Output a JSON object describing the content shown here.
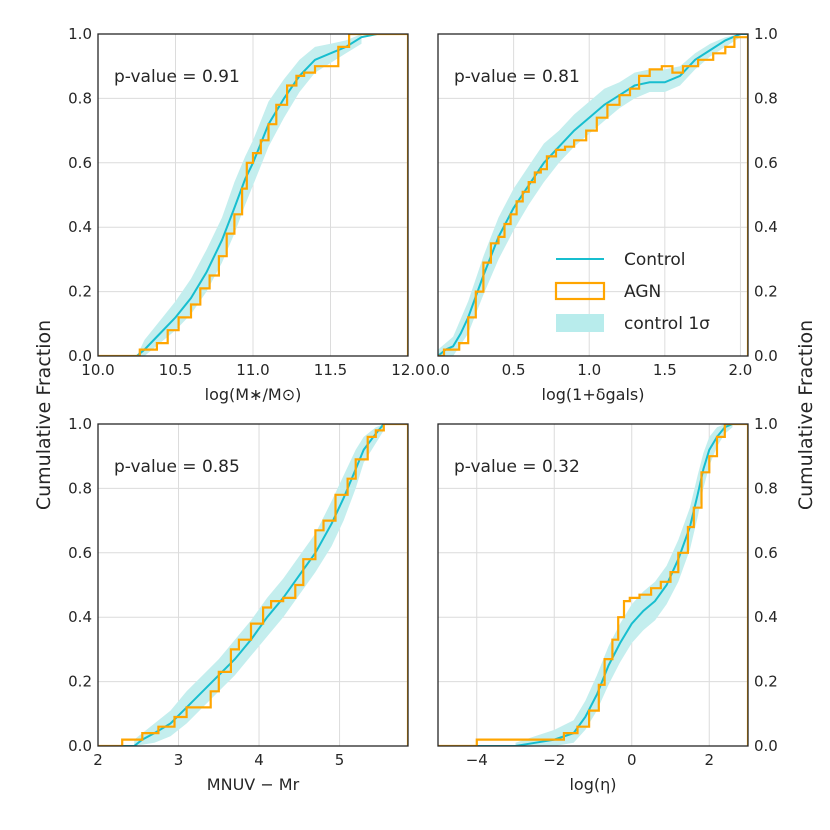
{
  "figure": {
    "left_ylabel": "Cumulative Fraction",
    "right_ylabel": "Cumulative Fraction"
  },
  "legend": {
    "placement": "lower-right of top-right panel",
    "entries": [
      {
        "label": "Control",
        "style": "line",
        "color": "#17becf"
      },
      {
        "label": "AGN",
        "style": "step",
        "color": "#ffa500"
      },
      {
        "label": "control 1σ",
        "style": "band",
        "color": "#b8ecec"
      }
    ]
  },
  "colors": {
    "control": "#17becf",
    "agn": "#ffa500",
    "band": "#c4eeee",
    "grid": "#dcdcdc",
    "axes": "#262626"
  },
  "chart_data": [
    {
      "type": "line",
      "panel": "top-left",
      "annotation": "p-value = 0.91",
      "xlabel": "log(M∗/M⊙)",
      "ylabel": "Cumulative Fraction",
      "xlim": [
        10.0,
        12.0
      ],
      "ylim": [
        0.0,
        1.0
      ],
      "xticks": [
        10.0,
        10.5,
        11.0,
        11.5,
        12.0
      ],
      "xtick_labels": [
        "10.0",
        "10.5",
        "11.0",
        "11.5",
        "12.0"
      ],
      "yticks": [
        0.0,
        0.2,
        0.4,
        0.6,
        0.8,
        1.0
      ],
      "ytick_labels": [
        "0.0",
        "0.2",
        "0.4",
        "0.6",
        "0.8",
        "1.0"
      ],
      "series": [
        {
          "name": "Control",
          "style": "line",
          "x": [
            10.0,
            10.25,
            10.3,
            10.4,
            10.5,
            10.6,
            10.7,
            10.8,
            10.88,
            10.95,
            11.0,
            11.05,
            11.1,
            11.2,
            11.3,
            11.4,
            11.5,
            11.6,
            11.7,
            11.8,
            12.0
          ],
          "y": [
            0.0,
            0.0,
            0.02,
            0.07,
            0.12,
            0.18,
            0.26,
            0.36,
            0.46,
            0.55,
            0.6,
            0.66,
            0.72,
            0.8,
            0.87,
            0.92,
            0.94,
            0.96,
            0.99,
            1.0,
            1.0
          ]
        },
        {
          "name": "AGN",
          "style": "step",
          "x": [
            10.0,
            10.27,
            10.38,
            10.45,
            10.52,
            10.6,
            10.66,
            10.72,
            10.78,
            10.83,
            10.88,
            10.93,
            10.96,
            11.0,
            11.05,
            11.1,
            11.15,
            11.22,
            11.28,
            11.33,
            11.4,
            11.55,
            11.62,
            12.0
          ],
          "y": [
            0.0,
            0.02,
            0.04,
            0.08,
            0.12,
            0.16,
            0.21,
            0.25,
            0.31,
            0.38,
            0.44,
            0.52,
            0.6,
            0.63,
            0.67,
            0.72,
            0.78,
            0.84,
            0.87,
            0.88,
            0.9,
            0.96,
            1.0,
            1.0
          ]
        },
        {
          "name": "control 1σ",
          "style": "band",
          "x": [
            10.25,
            10.3,
            10.4,
            10.5,
            10.6,
            10.7,
            10.8,
            10.88,
            10.95,
            11.0,
            11.05,
            11.1,
            11.2,
            11.3,
            11.4,
            11.5,
            11.6,
            11.7
          ],
          "low": [
            0.0,
            0.0,
            0.04,
            0.08,
            0.13,
            0.2,
            0.29,
            0.38,
            0.47,
            0.53,
            0.59,
            0.65,
            0.74,
            0.82,
            0.88,
            0.91,
            0.94,
            0.97
          ],
          "high": [
            0.0,
            0.05,
            0.11,
            0.17,
            0.24,
            0.33,
            0.43,
            0.54,
            0.62,
            0.67,
            0.73,
            0.79,
            0.86,
            0.92,
            0.96,
            0.97,
            0.98,
            1.0
          ]
        }
      ]
    },
    {
      "type": "line",
      "panel": "top-right",
      "annotation": "p-value = 0.81",
      "xlabel": "log(1+δgals)",
      "ylabel": "Cumulative Fraction",
      "xlim": [
        0.0,
        2.05
      ],
      "ylim": [
        0.0,
        1.0
      ],
      "xticks": [
        0.0,
        0.5,
        1.0,
        1.5,
        2.0
      ],
      "xtick_labels": [
        "0.0",
        "0.5",
        "1.0",
        "1.5",
        "2.0"
      ],
      "yticks": [
        0.0,
        0.2,
        0.4,
        0.6,
        0.8,
        1.0
      ],
      "ytick_labels": [
        "0.0",
        "0.2",
        "0.4",
        "0.6",
        "0.8",
        "1.0"
      ],
      "series": [
        {
          "name": "Control",
          "style": "line",
          "x": [
            0.0,
            0.05,
            0.1,
            0.15,
            0.2,
            0.3,
            0.4,
            0.5,
            0.6,
            0.7,
            0.8,
            0.9,
            1.0,
            1.1,
            1.2,
            1.3,
            1.4,
            1.5,
            1.6,
            1.7,
            1.8,
            1.9,
            2.0,
            2.05
          ],
          "y": [
            0.0,
            0.02,
            0.03,
            0.07,
            0.12,
            0.25,
            0.37,
            0.46,
            0.53,
            0.6,
            0.65,
            0.7,
            0.74,
            0.78,
            0.81,
            0.84,
            0.85,
            0.85,
            0.87,
            0.92,
            0.95,
            0.98,
            1.0,
            1.0
          ]
        },
        {
          "name": "AGN",
          "style": "step",
          "x": [
            0.0,
            0.04,
            0.14,
            0.2,
            0.25,
            0.3,
            0.35,
            0.4,
            0.44,
            0.48,
            0.52,
            0.56,
            0.6,
            0.64,
            0.68,
            0.72,
            0.78,
            0.84,
            0.9,
            0.98,
            1.05,
            1.12,
            1.2,
            1.27,
            1.33,
            1.4,
            1.48,
            1.55,
            1.62,
            1.72,
            1.82,
            1.9,
            1.96,
            2.05
          ],
          "y": [
            0.0,
            0.02,
            0.04,
            0.12,
            0.2,
            0.29,
            0.35,
            0.37,
            0.41,
            0.44,
            0.48,
            0.51,
            0.54,
            0.57,
            0.58,
            0.62,
            0.64,
            0.65,
            0.67,
            0.7,
            0.74,
            0.78,
            0.81,
            0.83,
            0.87,
            0.89,
            0.9,
            0.88,
            0.9,
            0.92,
            0.94,
            0.96,
            0.99,
            1.0
          ]
        },
        {
          "name": "control 1σ",
          "style": "band",
          "x": [
            0.0,
            0.1,
            0.2,
            0.3,
            0.4,
            0.5,
            0.6,
            0.7,
            0.8,
            0.9,
            1.0,
            1.1,
            1.2,
            1.3,
            1.4,
            1.5,
            1.6,
            1.7,
            1.8,
            1.9,
            2.0
          ],
          "low": [
            0.0,
            0.0,
            0.07,
            0.19,
            0.3,
            0.39,
            0.47,
            0.54,
            0.6,
            0.65,
            0.69,
            0.73,
            0.77,
            0.8,
            0.82,
            0.82,
            0.84,
            0.89,
            0.93,
            0.96,
            0.99
          ],
          "high": [
            0.02,
            0.06,
            0.17,
            0.31,
            0.43,
            0.52,
            0.59,
            0.66,
            0.7,
            0.75,
            0.79,
            0.83,
            0.85,
            0.88,
            0.89,
            0.89,
            0.9,
            0.94,
            0.97,
            0.99,
            1.0
          ]
        }
      ]
    },
    {
      "type": "line",
      "panel": "bottom-left",
      "annotation": "p-value = 0.85",
      "xlabel": "MNUV − Mr",
      "ylabel": "Cumulative Fraction",
      "xlim": [
        2.0,
        5.85
      ],
      "ylim": [
        0.0,
        1.0
      ],
      "xticks": [
        2,
        3,
        4,
        5
      ],
      "xtick_labels": [
        "2",
        "3",
        "4",
        "5"
      ],
      "yticks": [
        0.0,
        0.2,
        0.4,
        0.6,
        0.8,
        1.0
      ],
      "ytick_labels": [
        "0.0",
        "0.2",
        "0.4",
        "0.6",
        "0.8",
        "1.0"
      ],
      "series": [
        {
          "name": "Control",
          "style": "line",
          "x": [
            2.0,
            2.45,
            2.55,
            2.7,
            2.9,
            3.1,
            3.3,
            3.5,
            3.7,
            3.9,
            4.1,
            4.3,
            4.5,
            4.7,
            4.9,
            5.05,
            5.2,
            5.3,
            5.45,
            5.55,
            5.85
          ],
          "y": [
            0.0,
            0.0,
            0.02,
            0.04,
            0.07,
            0.12,
            0.17,
            0.22,
            0.27,
            0.33,
            0.4,
            0.46,
            0.53,
            0.6,
            0.69,
            0.77,
            0.86,
            0.92,
            0.97,
            1.0,
            1.0
          ]
        },
        {
          "name": "AGN",
          "style": "step",
          "x": [
            2.0,
            2.3,
            2.55,
            2.75,
            2.95,
            3.1,
            3.4,
            3.5,
            3.65,
            3.75,
            3.9,
            4.05,
            4.15,
            4.3,
            4.45,
            4.55,
            4.7,
            4.8,
            4.95,
            5.1,
            5.2,
            5.35,
            5.45,
            5.55,
            5.85
          ],
          "y": [
            0.0,
            0.02,
            0.04,
            0.06,
            0.09,
            0.12,
            0.17,
            0.23,
            0.3,
            0.33,
            0.38,
            0.43,
            0.45,
            0.46,
            0.5,
            0.58,
            0.67,
            0.7,
            0.78,
            0.83,
            0.89,
            0.96,
            0.98,
            1.0,
            1.0
          ]
        },
        {
          "name": "control 1σ",
          "style": "band",
          "x": [
            2.45,
            2.7,
            2.9,
            3.1,
            3.3,
            3.5,
            3.7,
            3.9,
            4.1,
            4.3,
            4.5,
            4.7,
            4.9,
            5.05,
            5.2,
            5.3,
            5.45,
            5.55
          ],
          "low": [
            0.0,
            0.01,
            0.03,
            0.07,
            0.12,
            0.17,
            0.22,
            0.28,
            0.34,
            0.4,
            0.47,
            0.54,
            0.62,
            0.7,
            0.8,
            0.88,
            0.94,
            0.98
          ],
          "high": [
            0.02,
            0.07,
            0.11,
            0.17,
            0.22,
            0.27,
            0.33,
            0.39,
            0.46,
            0.52,
            0.59,
            0.66,
            0.76,
            0.84,
            0.92,
            0.96,
            0.99,
            1.0
          ]
        }
      ]
    },
    {
      "type": "line",
      "panel": "bottom-right",
      "annotation": "p-value = 0.32",
      "xlabel": "log(η)",
      "ylabel": "Cumulative Fraction",
      "xlim": [
        -5.0,
        3.0
      ],
      "ylim": [
        0.0,
        1.0
      ],
      "xticks": [
        -4,
        -2,
        0,
        2
      ],
      "xtick_labels": [
        "−4",
        "−2",
        "0",
        "2"
      ],
      "yticks": [
        0.0,
        0.2,
        0.4,
        0.6,
        0.8,
        1.0
      ],
      "ytick_labels": [
        "0.0",
        "0.2",
        "0.4",
        "0.6",
        "0.8",
        "1.0"
      ],
      "series": [
        {
          "name": "Control",
          "style": "line",
          "x": [
            -5.0,
            -3.0,
            -2.5,
            -2.0,
            -1.5,
            -1.2,
            -0.9,
            -0.6,
            -0.3,
            0.0,
            0.3,
            0.6,
            0.9,
            1.2,
            1.5,
            1.7,
            1.85,
            2.0,
            2.2,
            2.4,
            2.6,
            3.0
          ],
          "y": [
            0.0,
            0.0,
            0.01,
            0.02,
            0.04,
            0.09,
            0.16,
            0.25,
            0.32,
            0.38,
            0.42,
            0.45,
            0.5,
            0.58,
            0.68,
            0.78,
            0.86,
            0.92,
            0.96,
            0.99,
            1.0,
            1.0
          ]
        },
        {
          "name": "AGN",
          "style": "step",
          "x": [
            -5.0,
            -4.0,
            -1.75,
            -1.4,
            -1.1,
            -0.85,
            -0.7,
            -0.5,
            -0.35,
            -0.2,
            -0.05,
            0.2,
            0.5,
            0.75,
            1.0,
            1.2,
            1.45,
            1.6,
            1.8,
            2.0,
            2.2,
            2.4,
            3.0
          ],
          "y": [
            0.0,
            0.02,
            0.04,
            0.06,
            0.11,
            0.19,
            0.27,
            0.33,
            0.4,
            0.45,
            0.46,
            0.47,
            0.49,
            0.51,
            0.54,
            0.6,
            0.68,
            0.74,
            0.85,
            0.9,
            0.96,
            1.0,
            1.0
          ]
        },
        {
          "name": "control 1σ",
          "style": "band",
          "x": [
            -3.0,
            -2.5,
            -2.0,
            -1.5,
            -1.2,
            -0.9,
            -0.6,
            -0.3,
            0.0,
            0.3,
            0.6,
            0.9,
            1.2,
            1.5,
            1.7,
            1.85,
            2.0,
            2.2,
            2.4,
            2.6
          ],
          "low": [
            0.0,
            0.0,
            0.0,
            0.01,
            0.05,
            0.11,
            0.19,
            0.26,
            0.32,
            0.36,
            0.39,
            0.44,
            0.51,
            0.61,
            0.71,
            0.8,
            0.87,
            0.93,
            0.97,
            0.99
          ],
          "high": [
            0.01,
            0.03,
            0.05,
            0.08,
            0.14,
            0.22,
            0.31,
            0.38,
            0.44,
            0.48,
            0.51,
            0.56,
            0.64,
            0.74,
            0.84,
            0.91,
            0.96,
            0.99,
            1.0,
            1.0
          ]
        }
      ]
    }
  ]
}
